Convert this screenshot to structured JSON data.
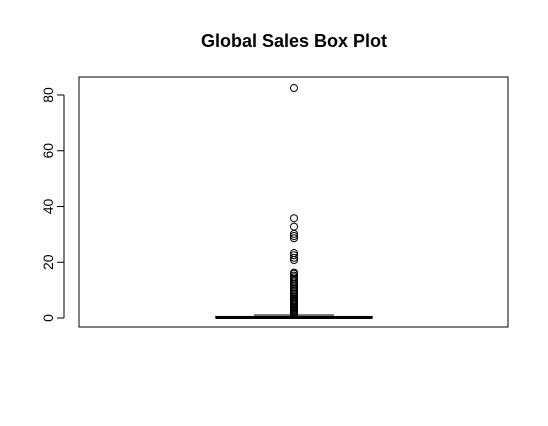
{
  "chart_data": {
    "type": "box",
    "title": "Global Sales Box Plot",
    "xlabel": "",
    "ylabel": "",
    "ylim": [
      -3,
      87
    ],
    "yticks": [
      0,
      20,
      40,
      60,
      80
    ],
    "grid": false,
    "box": {
      "min": 0.01,
      "q1": 0.06,
      "median": 0.17,
      "q3": 0.47,
      "whisker_low": 0.01,
      "whisker_high": 1.08
    },
    "outliers": [
      82.5,
      35.8,
      32.8,
      30.2,
      29.4,
      28.6,
      23.3,
      22.5,
      21.6,
      20.8,
      16.3,
      15.9,
      15.2,
      14.6,
      14.0,
      13.4,
      12.8,
      12.2,
      11.6,
      11.0,
      10.5,
      9.9,
      9.3,
      8.7,
      8.1,
      7.6,
      7.0,
      6.5,
      6.0,
      5.5,
      5.0,
      4.5,
      4.0,
      3.6,
      3.2,
      2.8,
      2.4,
      2.0,
      1.7,
      1.4,
      1.2
    ]
  }
}
